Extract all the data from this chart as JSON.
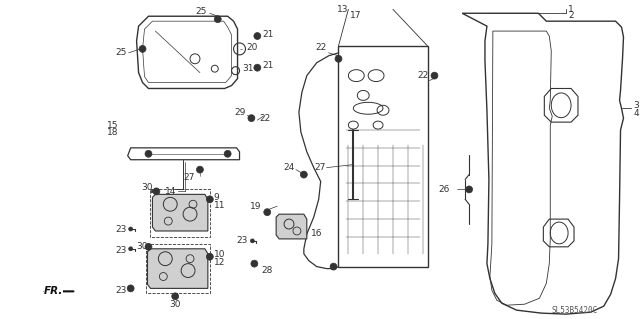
{
  "diagram_code": "SL53B5420C",
  "background_color": "#ffffff",
  "line_color": "#333333"
}
